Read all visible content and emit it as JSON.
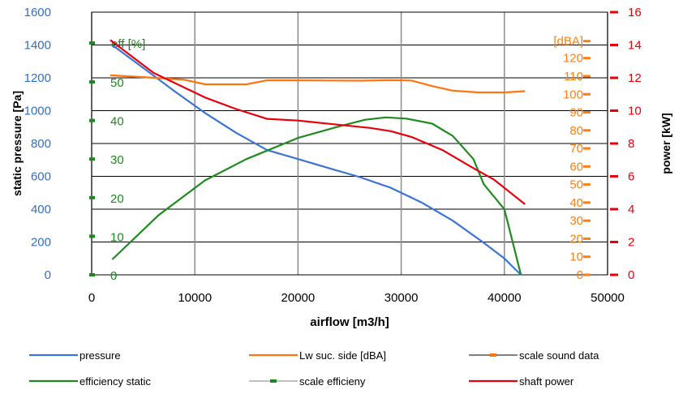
{
  "chart_data": {
    "type": "line",
    "x_axis": {
      "label": "airflow [m3/h]",
      "range": [
        0,
        50000
      ],
      "ticks": [
        0,
        10000,
        20000,
        30000,
        40000,
        50000
      ],
      "grid": true
    },
    "y_axis_left": {
      "label": "static pressure [Pa]",
      "range": [
        0,
        1600
      ],
      "ticks": [
        0,
        200,
        400,
        600,
        800,
        1000,
        1200,
        1400,
        1600
      ],
      "color": "#2f6ecf",
      "grid": true
    },
    "y_axis_right": {
      "label": "power [kW]",
      "range": [
        0,
        16
      ],
      "ticks": [
        0,
        2,
        4,
        6,
        8,
        10,
        12,
        14,
        16
      ],
      "color": "#e8000b"
    },
    "efficiency_scale": {
      "label": "eff [%]",
      "x": 0,
      "ticks": [
        0,
        10,
        20,
        30,
        40,
        50
      ],
      "color": "#1a8a1a",
      "pressure_per_unit": 23.5
    },
    "sound_scale": {
      "label": "[dBA]",
      "x": 50000,
      "ticks": [
        0,
        10,
        20,
        30,
        40,
        50,
        60,
        70,
        80,
        90,
        100,
        110,
        120
      ],
      "color": "#ff7f0e",
      "pressure_per_unit": 11
    },
    "series": [
      {
        "name": "pressure",
        "axis": "pressure",
        "color": "#3b74d6",
        "x": [
          2000,
          5000,
          8000,
          11000,
          14000,
          17000,
          20000,
          23000,
          26000,
          29000,
          32000,
          35000,
          38000,
          40000,
          41600
        ],
        "y": [
          1400,
          1260,
          1120,
          985,
          865,
          760,
          705,
          650,
          595,
          530,
          440,
          330,
          195,
          100,
          0
        ]
      },
      {
        "name": "Lw suc. side [dBA]",
        "axis": "sound",
        "color": "#ff7410",
        "x": [
          1800,
          5000,
          9000,
          11000,
          15000,
          17000,
          20000,
          23000,
          26000,
          29000,
          31000,
          33000,
          35000,
          37500,
          40000,
          42000
        ],
        "y": [
          110.5,
          109.5,
          108,
          105.5,
          105.5,
          107.7,
          107.7,
          107.6,
          107.5,
          107.8,
          107.6,
          104.5,
          102,
          101,
          101,
          101.7
        ]
      },
      {
        "name": "efficiency static",
        "axis": "efficiency",
        "color": "#1f8a1f",
        "x": [
          2000,
          6500,
          11000,
          15000,
          20000,
          24000,
          26500,
          28500,
          30500,
          33000,
          35000,
          37000,
          38000,
          40000,
          41600
        ],
        "y": [
          4,
          15.5,
          24.5,
          30,
          35.5,
          38.5,
          40.2,
          40.8,
          40.5,
          39.2,
          36,
          30,
          23.5,
          17,
          0
        ]
      },
      {
        "name": "shaft power",
        "axis": "power",
        "color": "#e8000b",
        "x": [
          1800,
          6000,
          11000,
          14000,
          17000,
          20000,
          23000,
          27000,
          29000,
          31000,
          34000,
          37000,
          39000,
          41000,
          42000
        ],
        "y": [
          14.3,
          12.3,
          10.8,
          10.1,
          9.5,
          9.4,
          9.2,
          8.95,
          8.75,
          8.4,
          7.6,
          6.5,
          5.8,
          4.8,
          4.3
        ]
      }
    ],
    "legend": [
      {
        "label": "pressure",
        "color": "#3b74d6",
        "style": "line"
      },
      {
        "label": "Lw suc. side [dBA]",
        "color": "#ff7410",
        "style": "line"
      },
      {
        "label": "scale sound data",
        "color": "#000000",
        "style": "marker-line",
        "marker_color": "#ff7410"
      },
      {
        "label": "efficiency static",
        "color": "#1f8a1f",
        "style": "line"
      },
      {
        "label": "scale efficieny",
        "color": "#808080",
        "style": "marker-line",
        "marker_color": "#1a8a1a"
      },
      {
        "label": "shaft power",
        "color": "#e8000b",
        "style": "line"
      }
    ],
    "legend_placement": "bottom"
  }
}
